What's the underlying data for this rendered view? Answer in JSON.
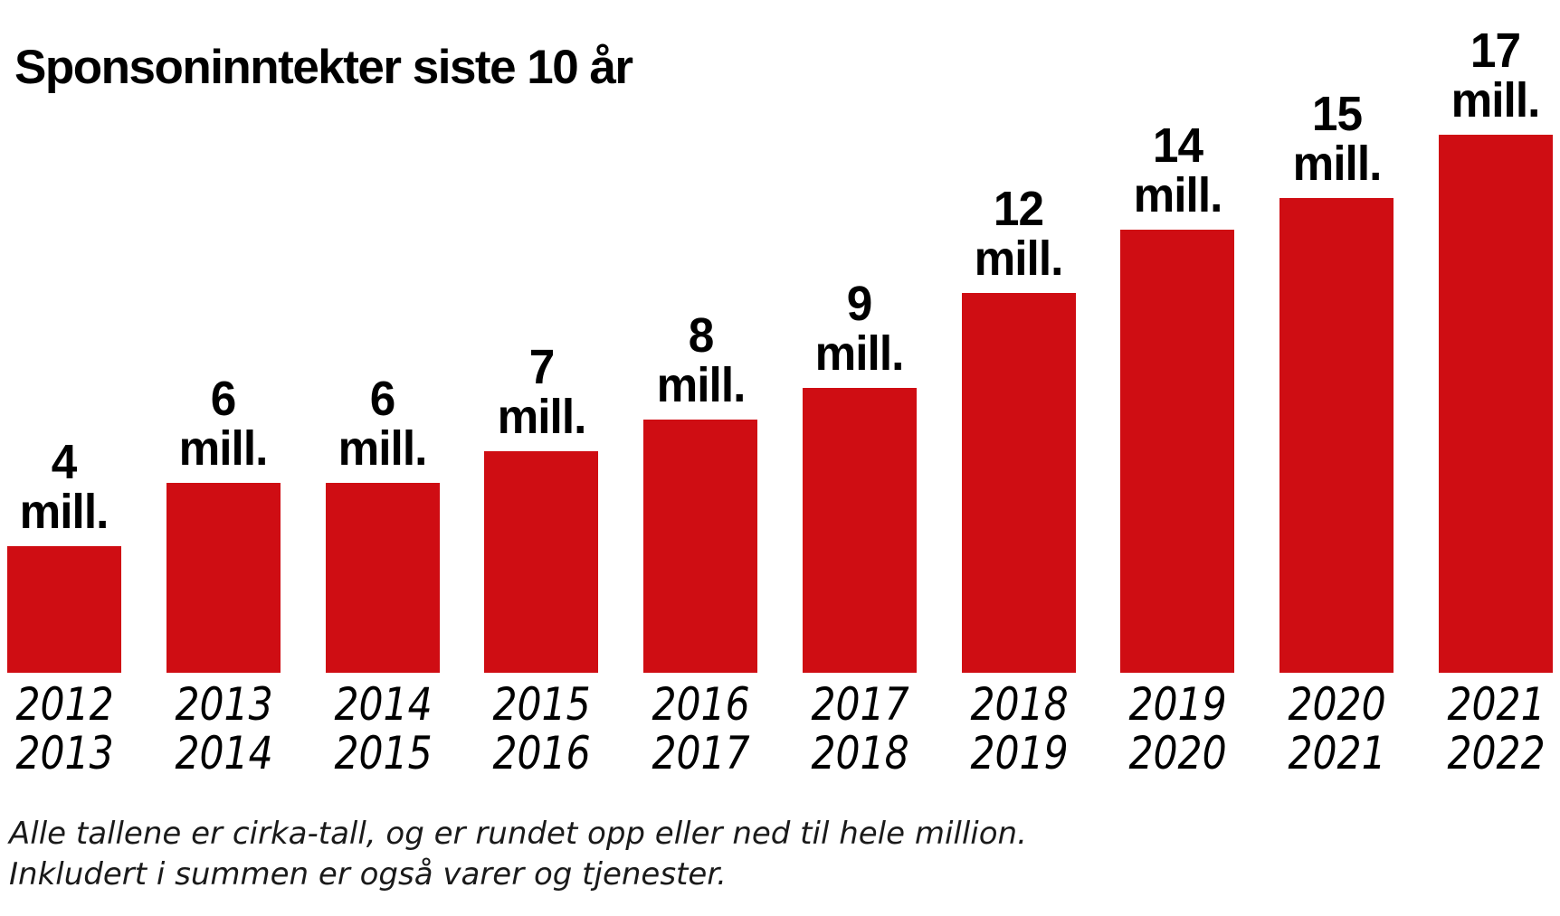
{
  "title": "Sponsoninntekter siste 10 år",
  "footnote": {
    "line1": "Alle tallene er cirka-tall, og er rundet opp eller ned til hele million.",
    "line2": "Inkludert i summen er også varer og tjenester."
  },
  "chart_data": {
    "type": "bar",
    "title": "Sponsoninntekter siste 10 år",
    "unit": "mill.",
    "bar_color": "#cf0d13",
    "text_color": "#000000",
    "grid": false,
    "legend": false,
    "ylim": [
      0,
      17
    ],
    "categories": [
      "2012/2013",
      "2013/2014",
      "2014/2015",
      "2015/2016",
      "2016/2017",
      "2017/2018",
      "2018/2019",
      "2019/2020",
      "2020/2021",
      "2021/2022"
    ],
    "values": [
      4,
      6,
      6,
      7,
      8,
      9,
      12,
      14,
      15,
      17
    ],
    "bars": [
      {
        "season_start": "2012",
        "season_end": "2013",
        "value": 4,
        "value_label_line1": "4",
        "value_label_line2": "mill."
      },
      {
        "season_start": "2013",
        "season_end": "2014",
        "value": 6,
        "value_label_line1": "6",
        "value_label_line2": "mill."
      },
      {
        "season_start": "2014",
        "season_end": "2015",
        "value": 6,
        "value_label_line1": "6",
        "value_label_line2": "mill."
      },
      {
        "season_start": "2015",
        "season_end": "2016",
        "value": 7,
        "value_label_line1": "7",
        "value_label_line2": "mill."
      },
      {
        "season_start": "2016",
        "season_end": "2017",
        "value": 8,
        "value_label_line1": "8",
        "value_label_line2": "mill."
      },
      {
        "season_start": "2017",
        "season_end": "2018",
        "value": 9,
        "value_label_line1": "9",
        "value_label_line2": "mill."
      },
      {
        "season_start": "2018",
        "season_end": "2019",
        "value": 12,
        "value_label_line1": "12",
        "value_label_line2": "mill."
      },
      {
        "season_start": "2019",
        "season_end": "2020",
        "value": 14,
        "value_label_line1": "14",
        "value_label_line2": "mill."
      },
      {
        "season_start": "2020",
        "season_end": "2021",
        "value": 15,
        "value_label_line1": "15",
        "value_label_line2": "mill."
      },
      {
        "season_start": "2021",
        "season_end": "2022",
        "value": 17,
        "value_label_line1": "17",
        "value_label_line2": "mill."
      }
    ]
  }
}
